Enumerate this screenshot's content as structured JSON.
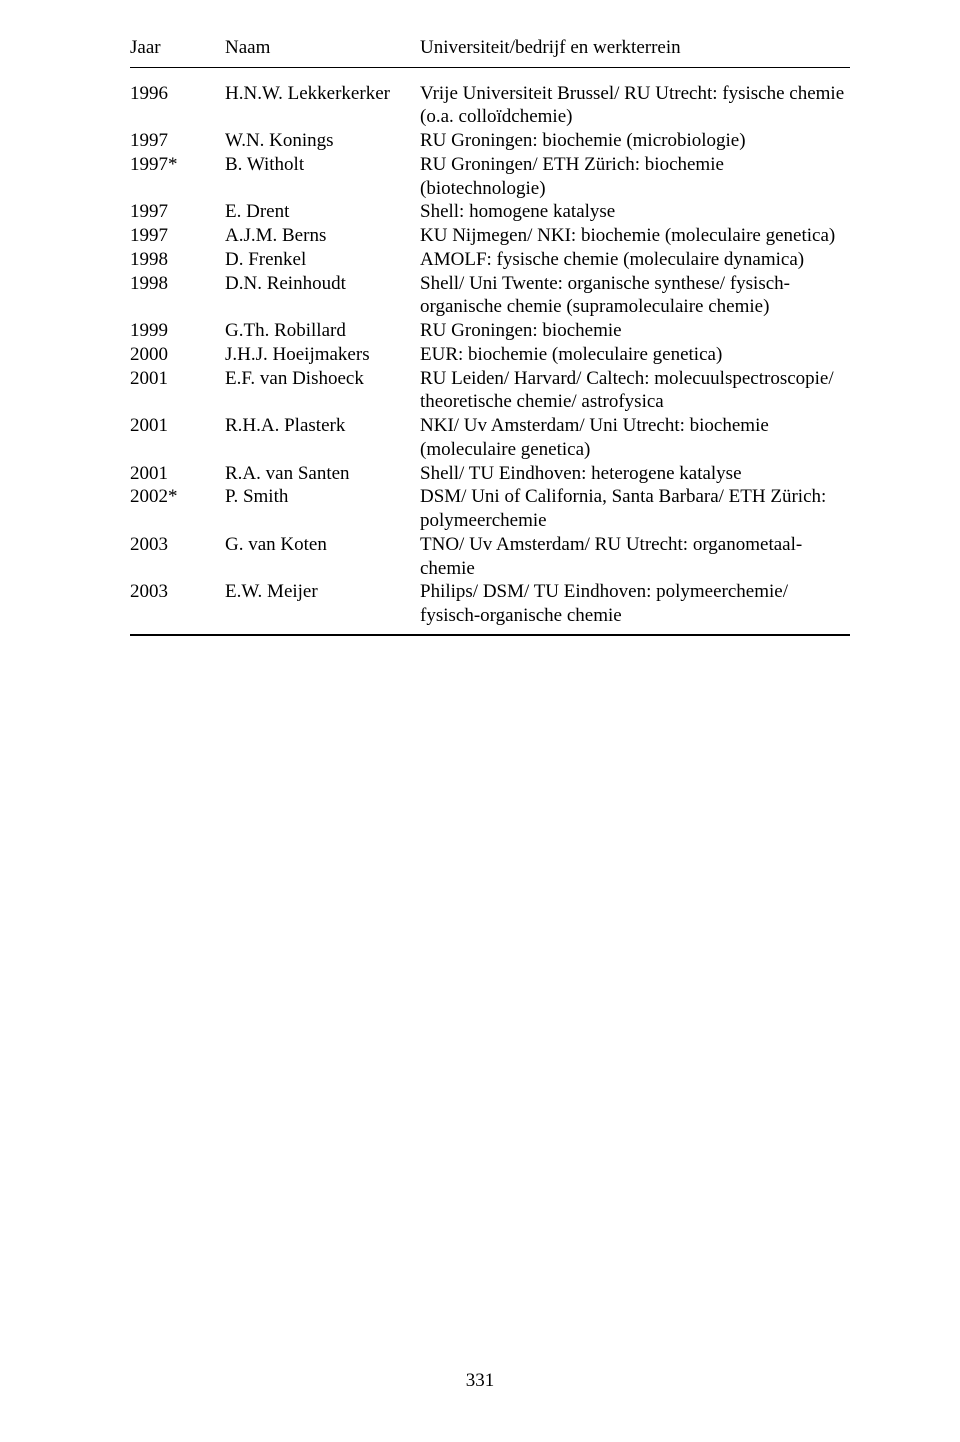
{
  "page": {
    "number": "331",
    "background": "#ffffff",
    "text_color": "#000000",
    "font_family": "Times New Roman",
    "font_size_pt": 14,
    "rule_color": "#000000"
  },
  "table": {
    "headers": {
      "year": "Jaar",
      "name": "Naam",
      "desc": "Universiteit/bedrijf en werkterrein"
    },
    "rows": [
      {
        "year": "1996",
        "name": "H.N.W. Lekkerkerker",
        "desc": "Vrije Universiteit Brussel/ RU Utrecht: fysische chemie (o.a. colloïdchemie)"
      },
      {
        "year": "1997",
        "name": "W.N. Konings",
        "desc": "RU Groningen: biochemie (microbiologie)"
      },
      {
        "year": "1997*",
        "name": "B. Witholt",
        "desc": "RU Groningen/ ETH Zürich: biochemie (biotechnologie)"
      },
      {
        "year": "1997",
        "name": "E. Drent",
        "desc": "Shell: homogene katalyse"
      },
      {
        "year": "1997",
        "name": "A.J.M. Berns",
        "desc": "KU Nijmegen/ NKI: biochemie (moleculaire genetica)"
      },
      {
        "year": "1998",
        "name": "D. Frenkel",
        "desc": "AMOLF: fysische chemie (moleculaire dynamica)"
      },
      {
        "year": "1998",
        "name": "D.N. Reinhoudt",
        "desc": "Shell/ Uni Twente: organische synthese/ fysisch-organische chemie (supramoleculaire chemie)"
      },
      {
        "year": "1999",
        "name": "G.Th. Robillard",
        "desc": "RU Groningen: biochemie"
      },
      {
        "year": "2000",
        "name": "J.H.J. Hoeijmakers",
        "desc": "EUR: biochemie (moleculaire genetica)"
      },
      {
        "year": "2001",
        "name": "E.F. van Dishoeck",
        "desc": "RU Leiden/ Harvard/ Caltech: molecuulspectroscopie/ theoretische chemie/ astrofysica"
      },
      {
        "year": "2001",
        "name": "R.H.A. Plasterk",
        "desc": "NKI/ Uv Amsterdam/ Uni Utrecht: biochemie (moleculaire genetica)"
      },
      {
        "year": "2001",
        "name": "R.A. van Santen",
        "desc": "Shell/ TU Eindhoven: heterogene katalyse"
      },
      {
        "year": "2002*",
        "name": "P. Smith",
        "desc": "DSM/ Uni of California, Santa Barbara/ ETH Zürich: polymeerchemie"
      },
      {
        "year": "2003",
        "name": "G. van Koten",
        "desc": "TNO/ Uv Amsterdam/ RU Utrecht: organometaal-chemie"
      },
      {
        "year": "2003",
        "name": "E.W. Meijer",
        "desc": "Philips/ DSM/ TU Eindhoven: polymeerchemie/ fysisch-organische chemie"
      }
    ]
  }
}
